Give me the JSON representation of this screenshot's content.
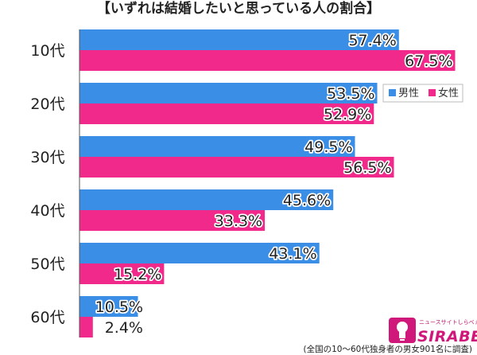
{
  "chart_data": {
    "type": "bar",
    "orientation": "horizontal",
    "title": "【いずれは結婚したいと思っている人の割合】",
    "categories": [
      "10代",
      "20代",
      "30代",
      "40代",
      "50代",
      "60代"
    ],
    "series": [
      {
        "name": "男性",
        "color": "#3a8ee6",
        "values": [
          57.4,
          53.5,
          49.5,
          45.6,
          43.1,
          10.5
        ],
        "labels": [
          "57.4%",
          "53.5%",
          "49.5%",
          "45.6%",
          "43.1%",
          "10.5%"
        ]
      },
      {
        "name": "女性",
        "color": "#f0298a",
        "values": [
          67.5,
          52.9,
          56.5,
          33.3,
          15.2,
          2.4
        ],
        "labels": [
          "67.5%",
          "52.9%",
          "56.5%",
          "33.3%",
          "15.2%",
          "2.4%"
        ]
      }
    ],
    "xlim": [
      0,
      100
    ],
    "grid": false,
    "legend": "top-right",
    "note": "(全国の10～60代独身者の男女901名に調査)"
  },
  "logo": {
    "subtitle": "ニュースサイトしらべぇ",
    "name": "SIRABEE",
    "mark": "lightbulb-icon",
    "color": "#d0187a"
  }
}
